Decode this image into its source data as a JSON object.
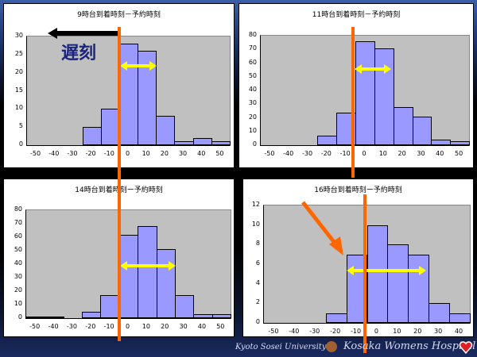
{
  "annotations": {
    "late_label": "遅刻",
    "footer_university": "Kyoto Sosei University",
    "footer_hospital": "Kosaka Womens Hospital",
    "colors": {
      "bar": "#9999ff",
      "plot_bg": "#c0c0c0",
      "reference_line": "#ff6600",
      "range_arrow": "#ffff00",
      "late_text": "#1a237e"
    }
  },
  "chart_data": [
    {
      "type": "bar",
      "title": "9時台到着時刻－予約時刻",
      "categories": [
        "-50",
        "-40",
        "-30",
        "-20",
        "-10",
        "0",
        "10",
        "20",
        "30",
        "40",
        "50"
      ],
      "values": [
        0,
        0,
        0,
        5,
        10,
        28,
        26,
        8,
        1,
        2,
        1
      ],
      "ylim": [
        0,
        30
      ],
      "yticks": [
        "30",
        "25",
        "20",
        "15",
        "10",
        "5",
        "0"
      ],
      "xlabel": "",
      "ylabel": ""
    },
    {
      "type": "bar",
      "title": "11時台到着時刻－予約時刻",
      "categories": [
        "-50",
        "-40",
        "-30",
        "-20",
        "-10",
        "0",
        "10",
        "20",
        "30",
        "40",
        "50"
      ],
      "values": [
        0,
        0,
        0,
        7,
        24,
        76,
        71,
        28,
        21,
        4,
        3
      ],
      "ylim": [
        0,
        80
      ],
      "yticks": [
        "80",
        "70",
        "60",
        "50",
        "40",
        "30",
        "20",
        "10",
        "0"
      ],
      "xlabel": "",
      "ylabel": ""
    },
    {
      "type": "bar",
      "title": "14時台到着時刻ー予約時刻",
      "categories": [
        "-50",
        "-40",
        "-30",
        "-20",
        "-10",
        "0",
        "10",
        "20",
        "30",
        "40",
        "50"
      ],
      "values": [
        1,
        1,
        0,
        5,
        17,
        62,
        68,
        51,
        17,
        3,
        3
      ],
      "ylim": [
        0,
        80
      ],
      "yticks": [
        "80",
        "70",
        "60",
        "50",
        "40",
        "30",
        "20",
        "10",
        "0"
      ],
      "xlabel": "",
      "ylabel": ""
    },
    {
      "type": "bar",
      "title": "16時台到着時刻ー予約時刻",
      "categories": [
        "-50",
        "-40",
        "-30",
        "-20",
        "-10",
        "0",
        "10",
        "20",
        "30",
        "40"
      ],
      "values": [
        0,
        0,
        0,
        1,
        7,
        10,
        8,
        7,
        2,
        1
      ],
      "ylim": [
        0,
        12
      ],
      "yticks": [
        "12",
        "10",
        "8",
        "6",
        "4",
        "2",
        "0"
      ],
      "xlabel": "",
      "ylabel": ""
    }
  ]
}
